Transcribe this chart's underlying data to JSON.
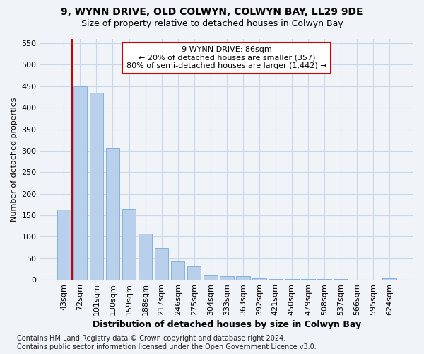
{
  "title1": "9, WYNN DRIVE, OLD COLWYN, COLWYN BAY, LL29 9DE",
  "title2": "Size of property relative to detached houses in Colwyn Bay",
  "xlabel": "Distribution of detached houses by size in Colwyn Bay",
  "ylabel": "Number of detached properties",
  "footnote": "Contains HM Land Registry data © Crown copyright and database right 2024.\nContains public sector information licensed under the Open Government Licence v3.0.",
  "categories": [
    "43sqm",
    "72sqm",
    "101sqm",
    "130sqm",
    "159sqm",
    "188sqm",
    "217sqm",
    "246sqm",
    "275sqm",
    "304sqm",
    "333sqm",
    "363sqm",
    "392sqm",
    "421sqm",
    "450sqm",
    "479sqm",
    "508sqm",
    "537sqm",
    "566sqm",
    "595sqm",
    "624sqm"
  ],
  "values": [
    163,
    450,
    435,
    307,
    165,
    107,
    75,
    43,
    32,
    10,
    8,
    8,
    4,
    2,
    2,
    1,
    1,
    1,
    0,
    0,
    4
  ],
  "bar_color": "#b8d0eb",
  "bar_edge_color": "#7aaad4",
  "grid_color": "#c8d8e8",
  "vline_color": "#cc0000",
  "vline_x_idx": 0.5,
  "annotation_text": "9 WYNN DRIVE: 86sqm\n← 20% of detached houses are smaller (357)\n80% of semi-detached houses are larger (1,442) →",
  "annotation_box_color": "#ffffff",
  "annotation_box_edge": "#cc0000",
  "ylim": [
    0,
    560
  ],
  "yticks": [
    0,
    50,
    100,
    150,
    200,
    250,
    300,
    350,
    400,
    450,
    500,
    550
  ],
  "background_color": "#f0f4f8",
  "title1_fontsize": 10,
  "title2_fontsize": 9,
  "xlabel_fontsize": 9,
  "ylabel_fontsize": 8,
  "tick_fontsize": 8,
  "annot_fontsize": 8,
  "footnote_fontsize": 7
}
